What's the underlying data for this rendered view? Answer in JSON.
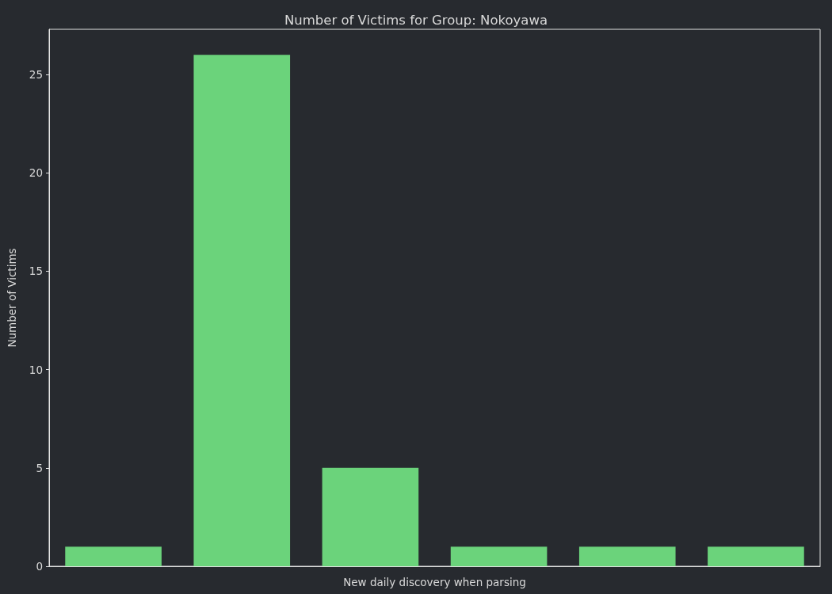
{
  "chart_data": {
    "type": "bar",
    "title": "Number of Victims for Group: Nokoyawa",
    "xlabel": "New daily discovery when parsing",
    "ylabel": "Number of Victims",
    "categories": [
      null,
      null,
      null,
      null,
      null,
      null
    ],
    "values": [
      1,
      26,
      5,
      1,
      1,
      1
    ],
    "color": "#6bd37b",
    "ylim": [
      0,
      27.3
    ],
    "yticks": [
      0,
      5,
      10,
      15,
      20,
      25
    ]
  }
}
